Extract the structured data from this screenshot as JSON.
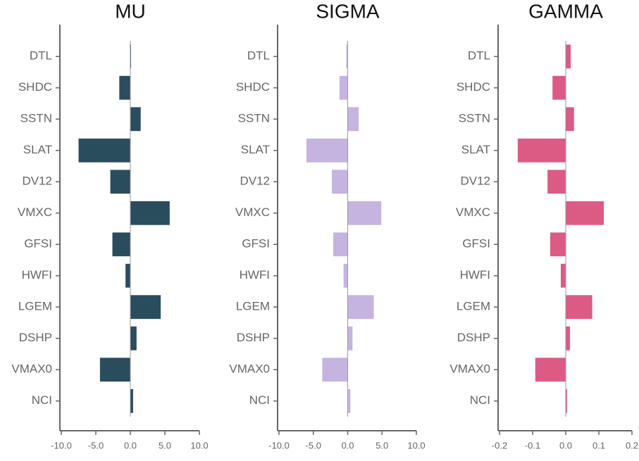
{
  "chart_data": [
    {
      "type": "bar",
      "horizontal": true,
      "title": "MU",
      "color": "#2a4d5e",
      "categories": [
        "DTL",
        "SHDC",
        "SSTN",
        "SLAT",
        "DV12",
        "VMXC",
        "GFSI",
        "HWFI",
        "LGEM",
        "DSHP",
        "VMAX0",
        "NCI"
      ],
      "values": [
        0.1,
        -1.6,
        1.5,
        -7.5,
        -2.9,
        5.7,
        -2.6,
        -0.7,
        4.4,
        0.9,
        -4.4,
        0.4
      ],
      "xlim": [
        -10,
        10
      ],
      "xticks": [
        {
          "value": -10,
          "label": "-10.0"
        },
        {
          "value": -5,
          "label": "-5.0"
        },
        {
          "value": 0,
          "label": "0.0"
        },
        {
          "value": 5,
          "label": "5.0"
        },
        {
          "value": 10,
          "label": "10.0"
        }
      ]
    },
    {
      "type": "bar",
      "horizontal": true,
      "title": "SIGMA",
      "color": "#c5b3e0",
      "categories": [
        "DTL",
        "SHDC",
        "SSTN",
        "SLAT",
        "DV12",
        "VMXC",
        "GFSI",
        "HWFI",
        "LGEM",
        "DSHP",
        "VMAX0",
        "NCI"
      ],
      "values": [
        -0.2,
        -1.2,
        1.6,
        -6.0,
        -2.3,
        4.9,
        -2.1,
        -0.6,
        3.8,
        0.7,
        -3.7,
        0.4
      ],
      "xlim": [
        -10,
        10
      ],
      "xticks": [
        {
          "value": -10,
          "label": "-10.0"
        },
        {
          "value": -5,
          "label": "-5.0"
        },
        {
          "value": 0,
          "label": "0.0"
        },
        {
          "value": 5,
          "label": "5.0"
        },
        {
          "value": 10,
          "label": "10.0"
        }
      ]
    },
    {
      "type": "bar",
      "horizontal": true,
      "title": "GAMMA",
      "color": "#db5b84",
      "categories": [
        "DTL",
        "SHDC",
        "SSTN",
        "SLAT",
        "DV12",
        "VMXC",
        "GFSI",
        "HWFI",
        "LGEM",
        "DSHP",
        "VMAX0",
        "NCI"
      ],
      "values": [
        0.015,
        -0.04,
        0.025,
        -0.145,
        -0.055,
        0.115,
        -0.047,
        -0.015,
        0.08,
        0.013,
        -0.092,
        0.004
      ],
      "xlim": [
        -0.2,
        0.2
      ],
      "xticks": [
        -0.2,
        -0.1,
        {
          "value": 0,
          "label": "0.0"
        },
        0.1,
        0.2
      ]
    }
  ]
}
